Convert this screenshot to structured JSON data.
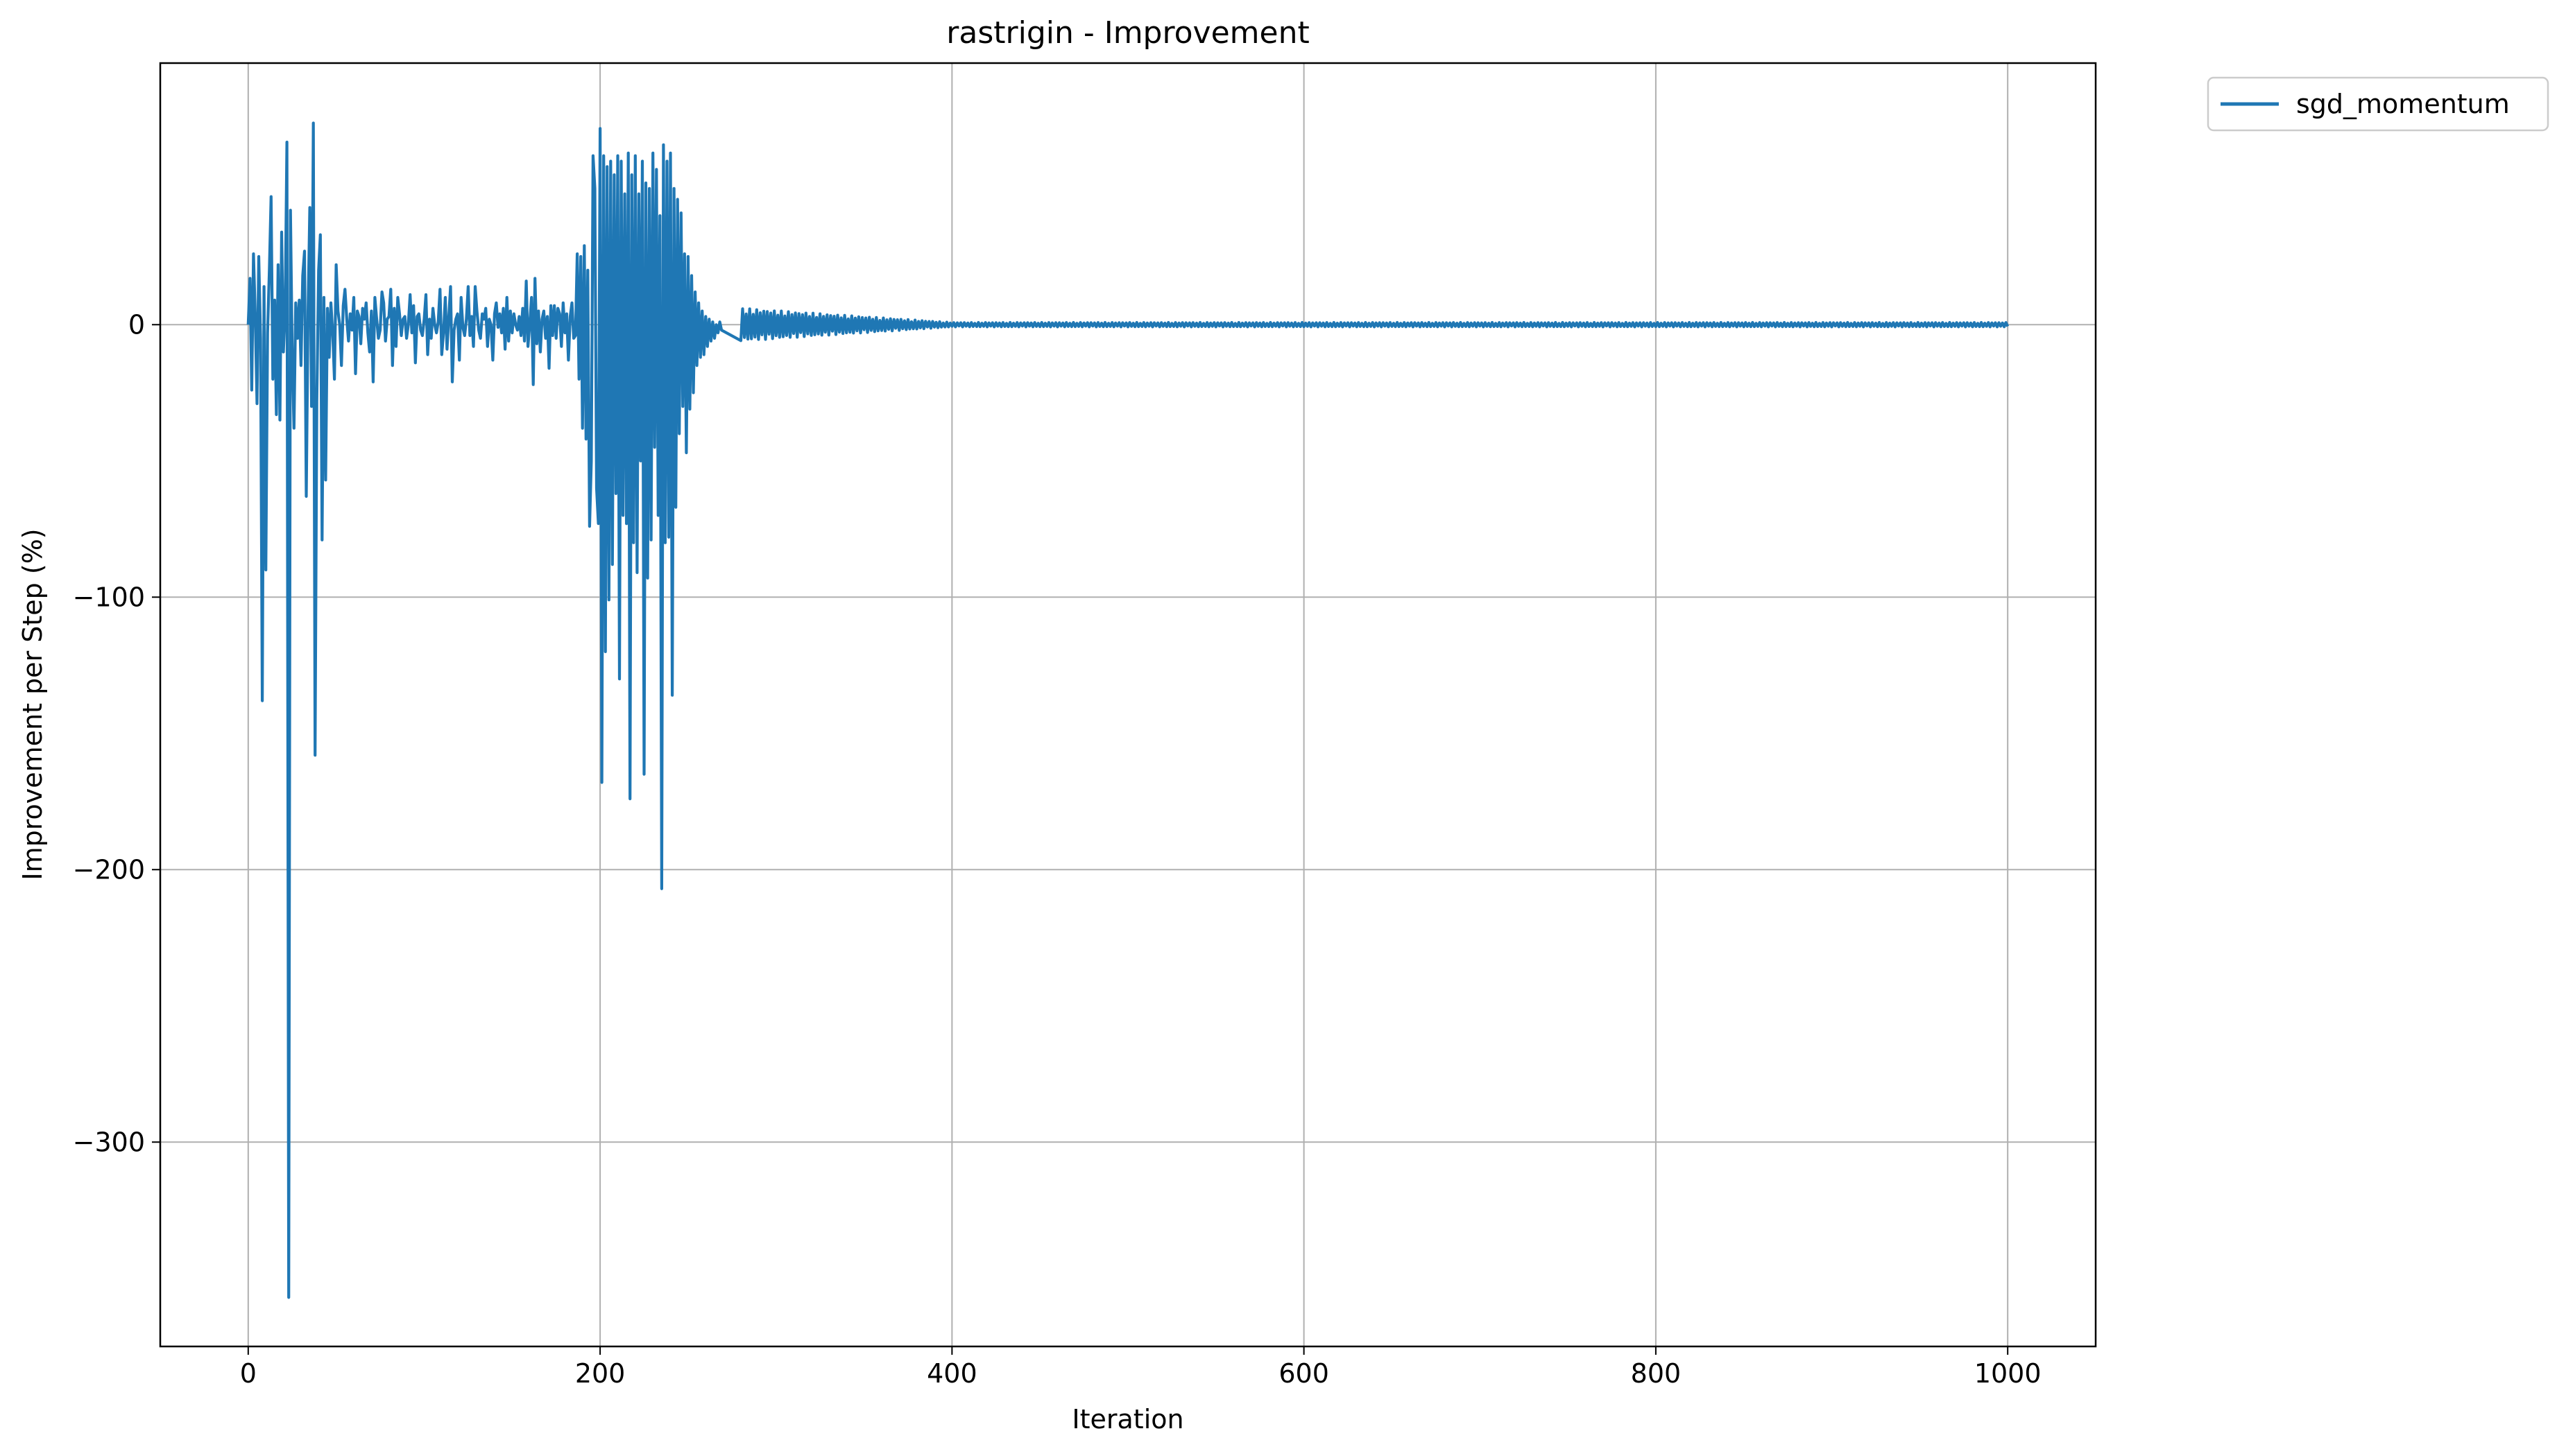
{
  "chart_data": {
    "type": "line",
    "title": "rastrigin - Improvement",
    "xlabel": "Iteration",
    "ylabel": "Improvement per Step (%)",
    "xlim": [
      -50,
      1050
    ],
    "ylim": [
      -375,
      96
    ],
    "x_ticks": [
      0,
      200,
      400,
      600,
      800,
      1000
    ],
    "y_ticks": [
      0,
      -100,
      -200,
      -300
    ],
    "x_tick_labels": [
      "0",
      "200",
      "400",
      "600",
      "800",
      "1000"
    ],
    "y_tick_labels": [
      "0",
      "−100",
      "−200",
      "−300"
    ],
    "grid": true,
    "legend_position": "outside-top-right",
    "series": [
      {
        "name": "sgd_momentum",
        "color": "#1f77b4",
        "x_start": 0,
        "x_step": 1,
        "values": [
          0,
          17,
          -24,
          26,
          3,
          -29,
          25,
          -5,
          -138,
          14,
          -90,
          -3,
          20,
          47,
          -20,
          9,
          -33,
          22,
          -35,
          34,
          -10,
          5,
          67,
          -357,
          42,
          -10,
          -38,
          8,
          -5,
          9,
          -15,
          18,
          27,
          -63,
          5,
          43,
          -30,
          74,
          -158,
          -28,
          20,
          33,
          -79,
          10,
          -57,
          6,
          -12,
          8,
          -3,
          -20,
          22,
          5,
          0,
          -15,
          7,
          13,
          2,
          -6,
          4,
          -2,
          10,
          -18,
          5,
          3,
          -7,
          6,
          2,
          8,
          -3,
          -10,
          5,
          -21,
          10,
          2,
          -5,
          -2,
          12,
          8,
          -6,
          2,
          3,
          13,
          -15,
          6,
          -8,
          10,
          4,
          -4,
          2,
          3,
          -5,
          0,
          11,
          -3,
          7,
          -14,
          3,
          4,
          -2,
          -4,
          2,
          11,
          -11,
          2,
          -5,
          6,
          0,
          -3,
          1,
          13,
          -11,
          -3,
          10,
          -9,
          3,
          14,
          -21,
          -2,
          2,
          4,
          -13,
          10,
          -1,
          -4,
          2,
          14,
          -4,
          3,
          -8,
          14,
          5,
          -2,
          -5,
          4,
          2,
          6,
          -8,
          2,
          0,
          -13,
          4,
          8,
          -1,
          4,
          -3,
          6,
          -9,
          10,
          -6,
          5,
          -3,
          4,
          0,
          -2,
          3,
          -4,
          6,
          -6,
          16,
          -8,
          0,
          10,
          -22,
          17,
          -7,
          5,
          -10,
          2,
          5,
          -5,
          3,
          -16,
          7,
          -4,
          7,
          -5,
          6,
          4,
          -8,
          8,
          -3,
          4,
          -13,
          3,
          8,
          -5,
          -4,
          26,
          -20,
          25,
          -38,
          29,
          -42,
          20,
          -74,
          -50,
          62,
          50,
          -60,
          -73,
          72,
          -168,
          62,
          -120,
          58,
          -101,
          60,
          -88,
          55,
          -62,
          62,
          -130,
          60,
          -70,
          48,
          -73,
          63,
          -174,
          55,
          -80,
          62,
          -91,
          48,
          -50,
          60,
          -165,
          52,
          -93,
          50,
          -79,
          63,
          -45,
          57,
          -70,
          40,
          -207,
          66,
          -80,
          60,
          -78,
          63,
          -136,
          50,
          -67,
          46,
          -40,
          41,
          -30,
          26,
          -47,
          25,
          -31,
          18,
          -25,
          12,
          -15,
          8,
          -12,
          5,
          -11,
          3,
          -8,
          2,
          -6,
          1,
          -5,
          0,
          -3,
          1,
          -2
        ],
        "tail": {
          "x_from": 280,
          "x_to": 1000,
          "amplitude_start": 6,
          "amplitude_end": 0.8,
          "decay_until": 400
        }
      }
    ]
  }
}
